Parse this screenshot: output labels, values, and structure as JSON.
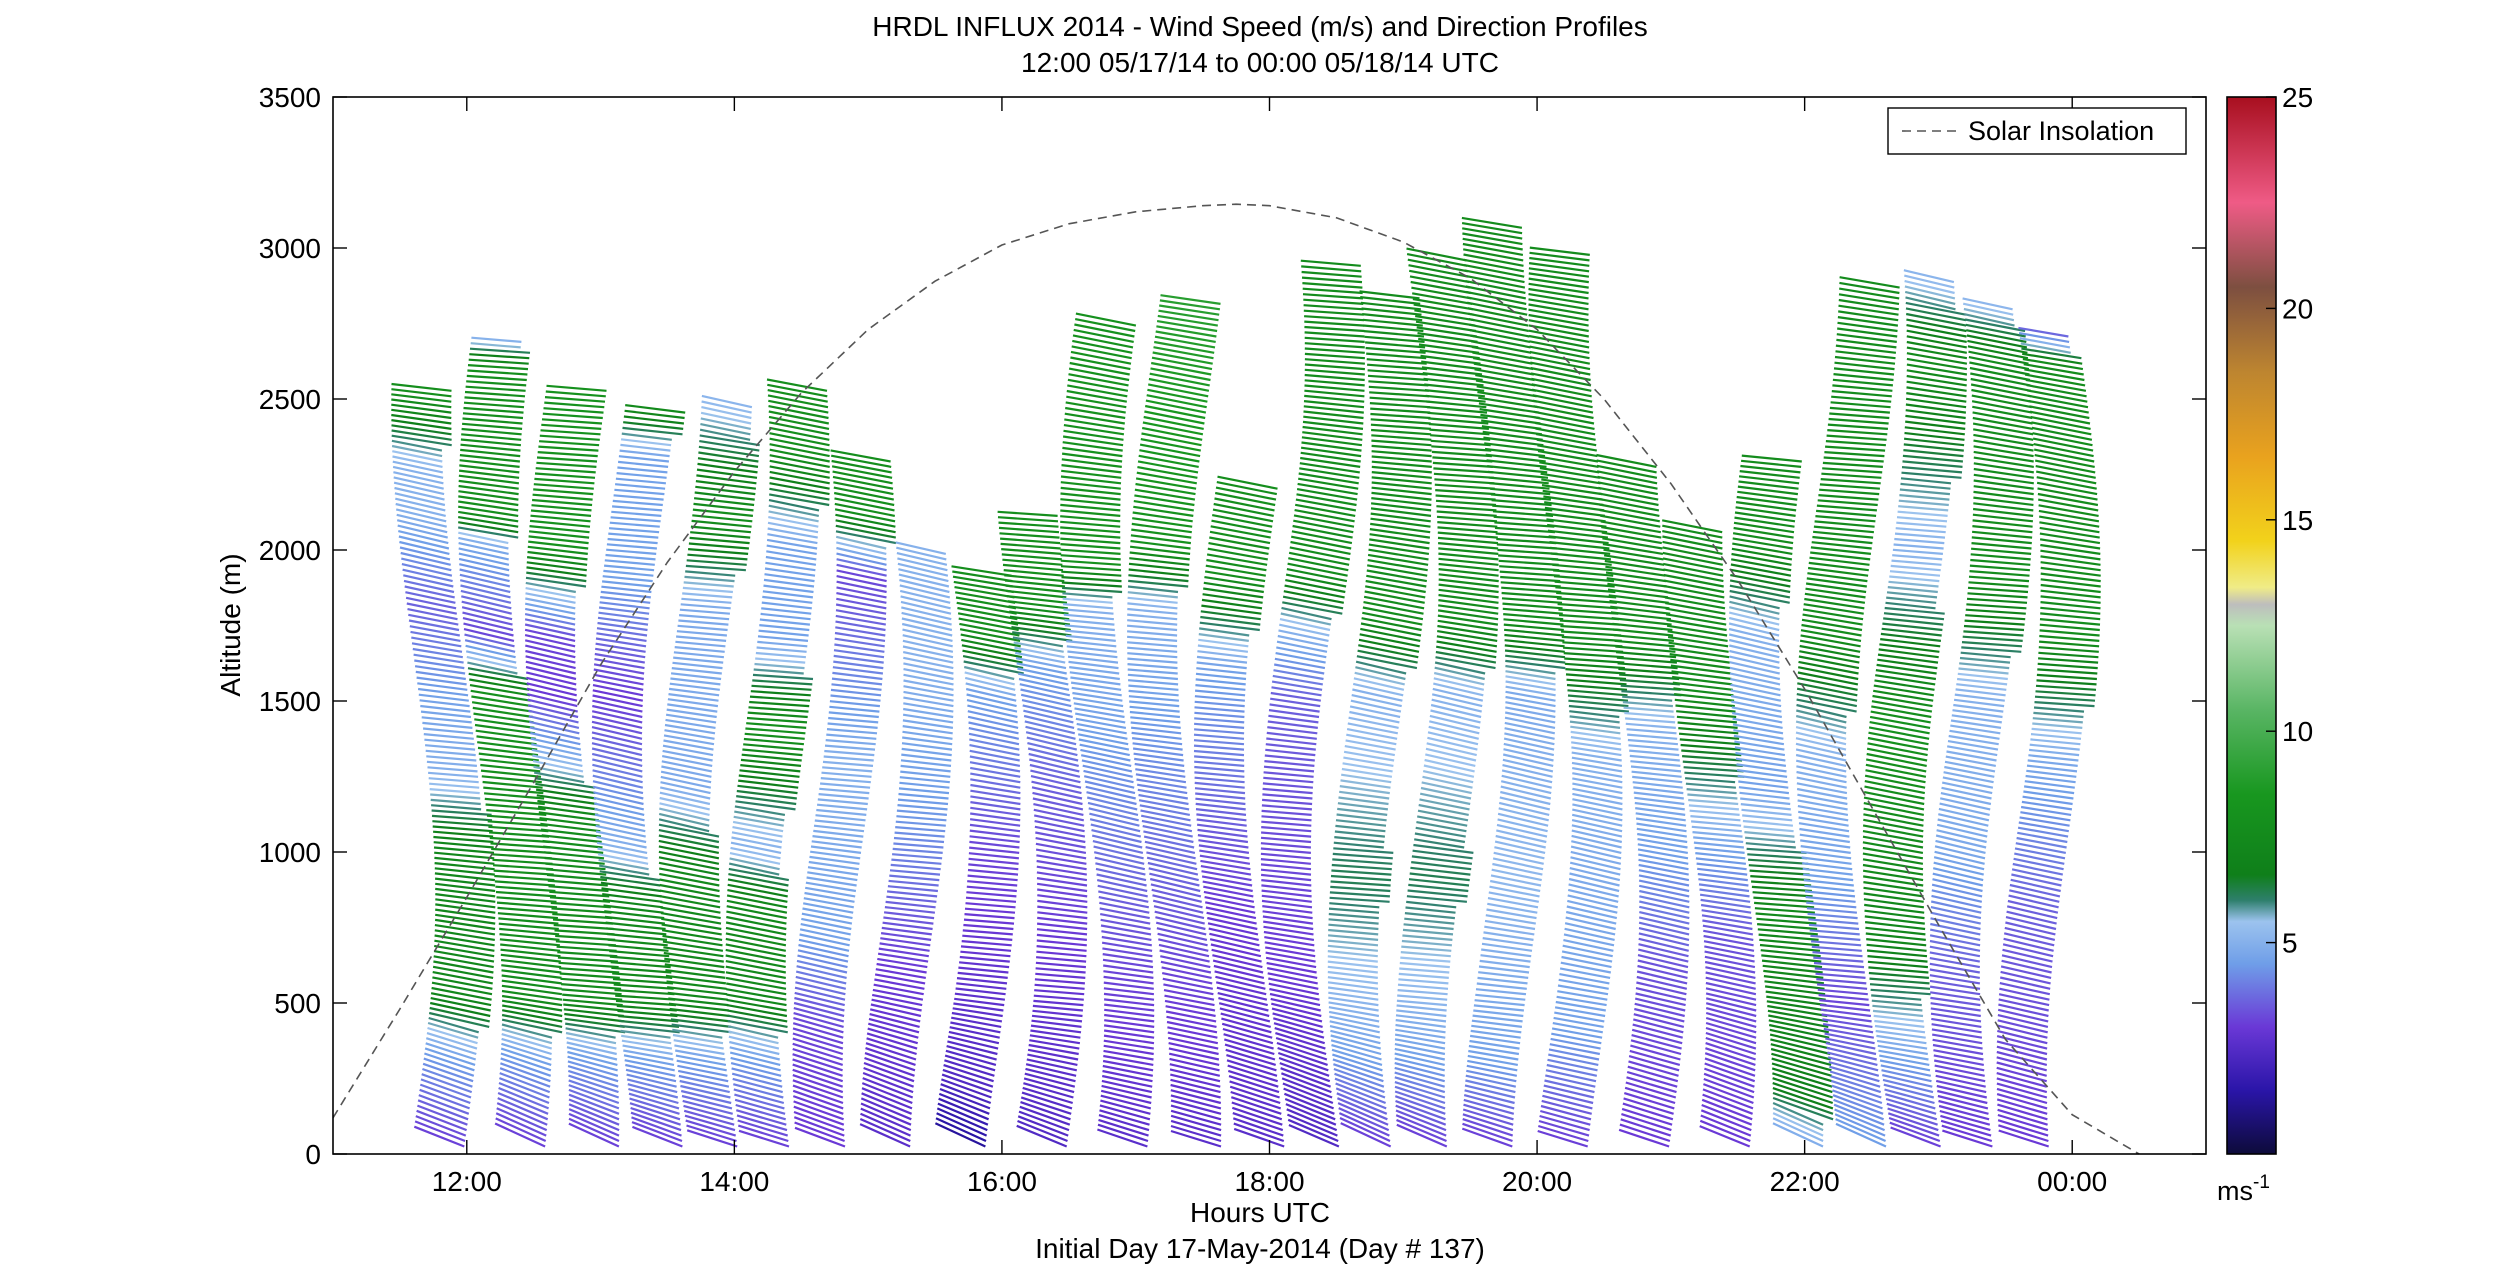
{
  "chart_data": {
    "type": "wind-barb-profile",
    "title": "HRDL INFLUX 2014 - Wind Speed (m/s) and Direction Profiles",
    "subtitle": "12:00 05/17/14 to 00:00 05/18/14  UTC",
    "xlabel": "Hours UTC",
    "xlabel2": "Initial Day 17-May-2014 (Day # 137)",
    "ylabel": "Altitude (m)",
    "xlim": [
      11.0,
      25.0
    ],
    "ylim": [
      0,
      3500
    ],
    "x_ticks": [
      {
        "value": 12,
        "label": "12:00"
      },
      {
        "value": 14,
        "label": "14:00"
      },
      {
        "value": 16,
        "label": "16:00"
      },
      {
        "value": 18,
        "label": "18:00"
      },
      {
        "value": 20,
        "label": "20:00"
      },
      {
        "value": 22,
        "label": "22:00"
      },
      {
        "value": 24,
        "label": "00:00"
      }
    ],
    "y_ticks": [
      {
        "value": 0,
        "label": "0"
      },
      {
        "value": 500,
        "label": "500"
      },
      {
        "value": 1000,
        "label": "1000"
      },
      {
        "value": 1500,
        "label": "1500"
      },
      {
        "value": 2000,
        "label": "2000"
      },
      {
        "value": 2500,
        "label": "2500"
      },
      {
        "value": 3000,
        "label": "3000"
      },
      {
        "value": 3500,
        "label": "3500"
      }
    ],
    "legend": {
      "label": "Solar Insolation",
      "placement": "top-right",
      "style": "dashed",
      "color": "#555555"
    },
    "solar_insolation": {
      "x": [
        11.0,
        11.5,
        12.0,
        12.5,
        13.0,
        13.5,
        14.0,
        14.5,
        15.0,
        15.5,
        16.0,
        16.5,
        17.0,
        17.5,
        17.75,
        18.0,
        18.5,
        19.0,
        19.5,
        20.0,
        20.5,
        21.0,
        21.5,
        22.0,
        22.5,
        23.0,
        23.5,
        24.0,
        24.5
      ],
      "y": [
        120,
        480,
        850,
        1230,
        1620,
        1960,
        2260,
        2520,
        2730,
        2890,
        3010,
        3080,
        3120,
        3140,
        3145,
        3140,
        3100,
        3020,
        2900,
        2730,
        2500,
        2220,
        1900,
        1540,
        1150,
        760,
        380,
        130,
        0
      ]
    },
    "colorbar": {
      "range": [
        0,
        25
      ],
      "ticks": [
        5,
        10,
        15,
        20,
        25
      ],
      "tick_labels": [
        "5",
        "10",
        "15",
        "20",
        "25"
      ],
      "unit_label": "ms",
      "unit_exponent": "-1",
      "stops": [
        {
          "v": 0,
          "color": "#0d0b3a"
        },
        {
          "v": 1.5,
          "color": "#2a15a8"
        },
        {
          "v": 3,
          "color": "#6a38d6"
        },
        {
          "v": 4.5,
          "color": "#6f9ee8"
        },
        {
          "v": 5.5,
          "color": "#9cc3ee"
        },
        {
          "v": 6.0,
          "color": "#2e7f6c"
        },
        {
          "v": 6.6,
          "color": "#0f7f1a"
        },
        {
          "v": 8.5,
          "color": "#18971f"
        },
        {
          "v": 10.5,
          "color": "#59b564"
        },
        {
          "v": 12.5,
          "color": "#b9e0b5"
        },
        {
          "v": 13.0,
          "color": "#bdbdbd"
        },
        {
          "v": 13.4,
          "color": "#f0ec87"
        },
        {
          "v": 14.5,
          "color": "#f2d21b"
        },
        {
          "v": 16.5,
          "color": "#e9a21e"
        },
        {
          "v": 18.5,
          "color": "#bd8530"
        },
        {
          "v": 20.5,
          "color": "#7d4f40"
        },
        {
          "v": 22.5,
          "color": "#ef5b86"
        },
        {
          "v": 25,
          "color": "#a80f1f"
        }
      ]
    },
    "profiles": [
      {
        "t": 11.6,
        "top": 2530,
        "s": [
          [
            0,
            3.0
          ],
          [
            300,
            4.6
          ],
          [
            500,
            7.2
          ],
          [
            1000,
            7.2
          ],
          [
            1250,
            5.0
          ],
          [
            1500,
            4.6
          ],
          [
            1800,
            3.6
          ],
          [
            2100,
            5.0
          ],
          [
            2250,
            5.0
          ],
          [
            2500,
            7.8
          ]
        ]
      },
      {
        "t": 12.1,
        "top": 2690,
        "s": [
          [
            0,
            3.0
          ],
          [
            300,
            4.6
          ],
          [
            500,
            7.6
          ],
          [
            1500,
            8.0
          ],
          [
            1700,
            3.2
          ],
          [
            2000,
            4.8
          ],
          [
            2100,
            7.8
          ],
          [
            2600,
            7.8
          ],
          [
            2690,
            5.0
          ]
        ]
      },
      {
        "t": 12.6,
        "top": 2540,
        "s": [
          [
            0,
            3.0
          ],
          [
            300,
            4.6
          ],
          [
            500,
            7.6
          ],
          [
            1100,
            7.6
          ],
          [
            1300,
            5.0
          ],
          [
            1500,
            3.0
          ],
          [
            1700,
            3.2
          ],
          [
            2000,
            8.0
          ],
          [
            2540,
            8.0
          ]
        ]
      },
      {
        "t": 13.1,
        "top": 2460,
        "s": [
          [
            0,
            3.0
          ],
          [
            300,
            4.6
          ],
          [
            500,
            7.4
          ],
          [
            800,
            7.4
          ],
          [
            1000,
            5.0
          ],
          [
            1500,
            3.0
          ],
          [
            1900,
            4.6
          ],
          [
            2300,
            4.6
          ],
          [
            2460,
            7.6
          ]
        ]
      },
      {
        "t": 13.6,
        "top": 2490,
        "s": [
          [
            0,
            3.0
          ],
          [
            300,
            4.6
          ],
          [
            500,
            7.4
          ],
          [
            900,
            7.4
          ],
          [
            1200,
            4.8
          ],
          [
            1800,
            4.8
          ],
          [
            2100,
            7.8
          ],
          [
            2490,
            5.0
          ]
        ]
      },
      {
        "t": 14.1,
        "top": 2540,
        "s": [
          [
            0,
            3.0
          ],
          [
            300,
            4.6
          ],
          [
            500,
            7.4
          ],
          [
            800,
            7.4
          ],
          [
            1000,
            5.0
          ],
          [
            1400,
            8.0
          ],
          [
            1700,
            4.6
          ],
          [
            2000,
            4.6
          ],
          [
            2300,
            7.8
          ],
          [
            2540,
            7.8
          ]
        ]
      },
      {
        "t": 14.6,
        "top": 2310,
        "s": [
          [
            0,
            3.0
          ],
          [
            400,
            3.2
          ],
          [
            700,
            4.6
          ],
          [
            1300,
            5.0
          ],
          [
            1900,
            3.2
          ],
          [
            2100,
            7.8
          ],
          [
            2310,
            7.8
          ]
        ]
      },
      {
        "t": 15.1,
        "top": 2000,
        "s": [
          [
            0,
            2.6
          ],
          [
            600,
            3.0
          ],
          [
            1100,
            4.4
          ],
          [
            1600,
            5.0
          ],
          [
            2000,
            5.0
          ]
        ]
      },
      {
        "t": 15.6,
        "top": 1930,
        "s": [
          [
            0,
            1.2
          ],
          [
            200,
            2.4
          ],
          [
            1000,
            3.2
          ],
          [
            1500,
            4.6
          ],
          [
            1700,
            7.8
          ],
          [
            1930,
            7.8
          ]
        ]
      },
      {
        "t": 16.1,
        "top": 2130,
        "s": [
          [
            0,
            2.4
          ],
          [
            700,
            3.0
          ],
          [
            1200,
            3.6
          ],
          [
            1600,
            4.6
          ],
          [
            1800,
            7.8
          ],
          [
            2130,
            7.8
          ]
        ]
      },
      {
        "t": 16.6,
        "top": 2750,
        "s": [
          [
            0,
            2.6
          ],
          [
            600,
            3.2
          ],
          [
            1400,
            4.6
          ],
          [
            1800,
            5.0
          ],
          [
            1950,
            8.0
          ],
          [
            2750,
            8.0
          ]
        ]
      },
      {
        "t": 17.1,
        "top": 2820,
        "s": [
          [
            0,
            2.6
          ],
          [
            600,
            3.2
          ],
          [
            1500,
            4.6
          ],
          [
            1800,
            5.0
          ],
          [
            2000,
            8.0
          ],
          [
            2820,
            9.0
          ]
        ]
      },
      {
        "t": 17.6,
        "top": 2220,
        "s": [
          [
            0,
            2.6
          ],
          [
            800,
            3.0
          ],
          [
            1600,
            4.6
          ],
          [
            1900,
            7.8
          ],
          [
            2220,
            7.8
          ]
        ]
      },
      {
        "t": 18.1,
        "top": 2950,
        "s": [
          [
            0,
            2.4
          ],
          [
            600,
            3.0
          ],
          [
            1500,
            3.6
          ],
          [
            1700,
            5.0
          ],
          [
            1900,
            7.6
          ],
          [
            2950,
            7.6
          ]
        ]
      },
      {
        "t": 18.6,
        "top": 2850,
        "s": [
          [
            0,
            3.0
          ],
          [
            300,
            4.6
          ],
          [
            900,
            6.2
          ],
          [
            1500,
            5.0
          ],
          [
            1750,
            7.6
          ],
          [
            2850,
            7.6
          ]
        ]
      },
      {
        "t": 19.1,
        "top": 2960,
        "s": [
          [
            0,
            3.0
          ],
          [
            300,
            4.6
          ],
          [
            900,
            6.2
          ],
          [
            1500,
            5.0
          ],
          [
            1750,
            7.6
          ],
          [
            2960,
            7.6
          ]
        ]
      },
      {
        "t": 19.6,
        "top": 3080,
        "s": [
          [
            0,
            3.0
          ],
          [
            300,
            4.6
          ],
          [
            900,
            5.2
          ],
          [
            1500,
            4.8
          ],
          [
            1750,
            7.6
          ],
          [
            3080,
            7.6
          ]
        ]
      },
      {
        "t": 20.1,
        "top": 2990,
        "s": [
          [
            0,
            3.0
          ],
          [
            400,
            4.6
          ],
          [
            1300,
            5.0
          ],
          [
            1700,
            7.6
          ],
          [
            2990,
            7.6
          ]
        ]
      },
      {
        "t": 20.6,
        "top": 2280,
        "s": [
          [
            0,
            3.0
          ],
          [
            600,
            3.4
          ],
          [
            1000,
            4.6
          ],
          [
            1400,
            5.0
          ],
          [
            1700,
            7.6
          ],
          [
            2280,
            7.6
          ]
        ]
      },
      {
        "t": 21.1,
        "top": 2070,
        "s": [
          [
            0,
            3.0
          ],
          [
            700,
            3.4
          ],
          [
            1000,
            4.6
          ],
          [
            1500,
            7.6
          ],
          [
            2070,
            7.6
          ]
        ]
      },
      {
        "t": 21.6,
        "top": 2300,
        "s": [
          [
            0,
            4.6
          ],
          [
            150,
            6.6
          ],
          [
            800,
            7.4
          ],
          [
            1200,
            4.6
          ],
          [
            1700,
            5.0
          ],
          [
            2000,
            7.6
          ],
          [
            2300,
            7.6
          ]
        ]
      },
      {
        "t": 22.1,
        "top": 2880,
        "s": [
          [
            0,
            4.6
          ],
          [
            500,
            3.2
          ],
          [
            900,
            4.6
          ],
          [
            1300,
            5.0
          ],
          [
            1700,
            7.6
          ],
          [
            2880,
            7.6
          ]
        ]
      },
      {
        "t": 22.6,
        "top": 2900,
        "s": [
          [
            0,
            3.0
          ],
          [
            300,
            4.6
          ],
          [
            700,
            7.2
          ],
          [
            1400,
            8.0
          ],
          [
            2000,
            5.0
          ],
          [
            2600,
            7.6
          ],
          [
            2900,
            5.0
          ]
        ]
      },
      {
        "t": 23.1,
        "top": 2810,
        "s": [
          [
            0,
            3.0
          ],
          [
            600,
            3.6
          ],
          [
            1000,
            4.8
          ],
          [
            1500,
            5.0
          ],
          [
            1900,
            7.6
          ],
          [
            2600,
            7.6
          ],
          [
            2810,
            5.0
          ]
        ]
      },
      {
        "t": 23.6,
        "top": 2710,
        "s": [
          [
            0,
            3.0
          ],
          [
            800,
            3.6
          ],
          [
            1300,
            4.8
          ],
          [
            1700,
            7.6
          ],
          [
            2600,
            7.6
          ],
          [
            2710,
            3.6
          ]
        ]
      }
    ]
  }
}
